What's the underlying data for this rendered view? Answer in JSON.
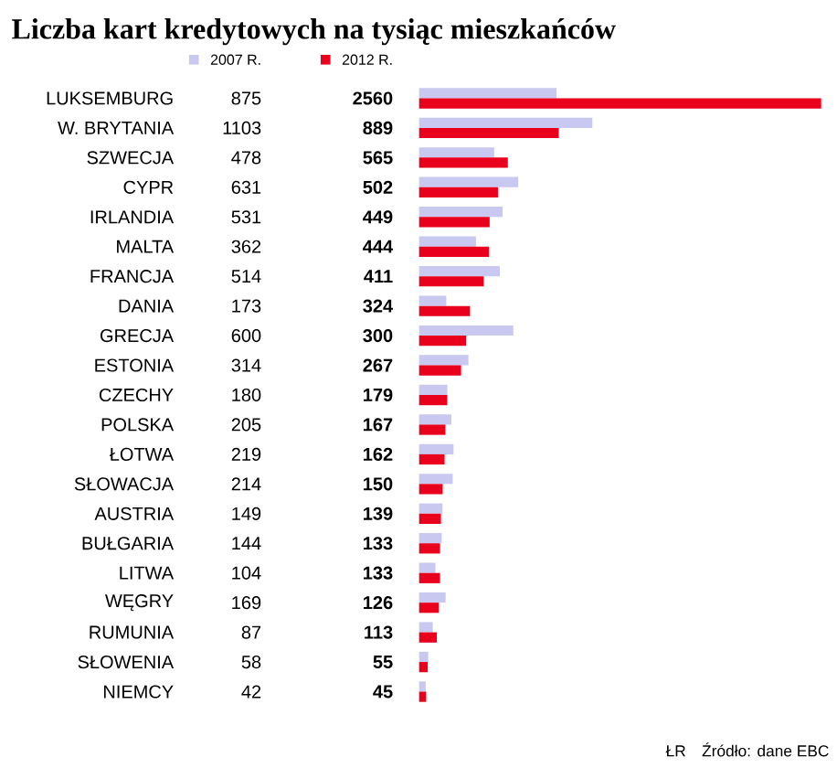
{
  "chart_data": {
    "type": "bar",
    "orientation": "horizontal",
    "title": "Liczba kart kredytowych na tysiąc mieszkańców",
    "categories": [
      "LUKSEMBURG",
      "W. BRYTANIA",
      "SZWECJA",
      "CYPR",
      "IRLANDIA",
      "MALTA",
      "FRANCJA",
      "DANIA",
      "GRECJA",
      "ESTONIA",
      "CZECHY",
      "POLSKA",
      "ŁOTWA",
      "SŁOWACJA",
      "AUSTRIA",
      "BUŁGARIA",
      "LITWA",
      "WĘGRY",
      "RUMUNIA",
      "SŁOWENIA",
      "NIEMCY"
    ],
    "series": [
      {
        "name": "2007 R.",
        "color": "#c8c8f0",
        "values": [
          875,
          1103,
          478,
          631,
          531,
          362,
          514,
          173,
          600,
          314,
          180,
          205,
          219,
          214,
          149,
          144,
          104,
          169,
          87,
          58,
          42
        ]
      },
      {
        "name": "2012 R.",
        "color": "#e8001c",
        "values": [
          2560,
          889,
          565,
          502,
          449,
          444,
          411,
          324,
          300,
          267,
          179,
          167,
          162,
          150,
          139,
          133,
          133,
          126,
          113,
          55,
          45
        ]
      }
    ],
    "data_labels": true,
    "legend": "top",
    "annotations": [
      "ŁR",
      "Źródło: dane EBC"
    ]
  }
}
